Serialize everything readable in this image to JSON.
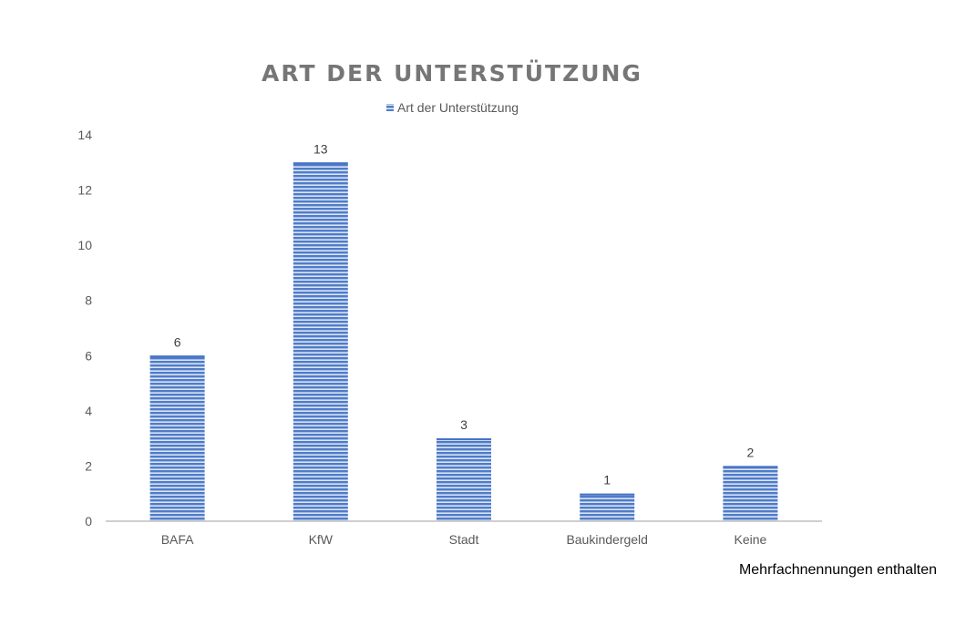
{
  "chart_data": {
    "type": "bar",
    "title": "ART DER UNTERSTÜTZUNG",
    "categories": [
      "BAFA",
      "KfW",
      "Stadt",
      "Baukindergeld",
      "Keine"
    ],
    "series": [
      {
        "name": "Art der Unterstützung",
        "values": [
          6,
          13,
          3,
          1,
          2
        ]
      }
    ],
    "ylim": [
      0,
      14
    ],
    "yticks": [
      0,
      2,
      4,
      6,
      8,
      10,
      12,
      14
    ],
    "grid": false,
    "legend": "top",
    "data_labels": true,
    "colors": {
      "bar": "#4472c4",
      "bar_light": "#dbe4f5",
      "axis": "#bfbfbf"
    }
  },
  "footnote": "Mehrfachnennungen enthalten"
}
